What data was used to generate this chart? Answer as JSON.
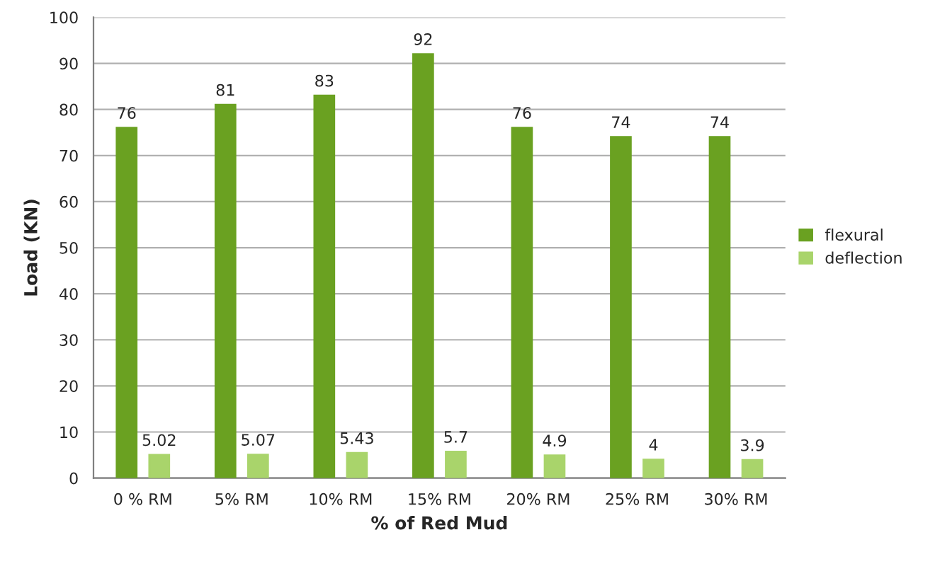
{
  "chart_data": {
    "type": "bar",
    "xlabel": "% of Red Mud",
    "ylabel": "Load (KN)",
    "categories": [
      "0 % RM",
      "5% RM",
      "10% RM",
      "15% RM",
      "20% RM",
      "25% RM",
      "30% RM"
    ],
    "series": [
      {
        "name": "flexural",
        "color": "#6aa121",
        "values": [
          76,
          81,
          83,
          92,
          76,
          74,
          74
        ]
      },
      {
        "name": "deflection",
        "color": "#a9d46b",
        "values": [
          5.02,
          5.07,
          5.43,
          5.7,
          4.9,
          4,
          3.9
        ]
      }
    ],
    "ylim": [
      0,
      100
    ],
    "yticks": [
      0,
      10,
      20,
      30,
      40,
      50,
      60,
      70,
      80,
      90,
      100
    ],
    "grid": "y",
    "legend": "right",
    "data_labels": true
  }
}
